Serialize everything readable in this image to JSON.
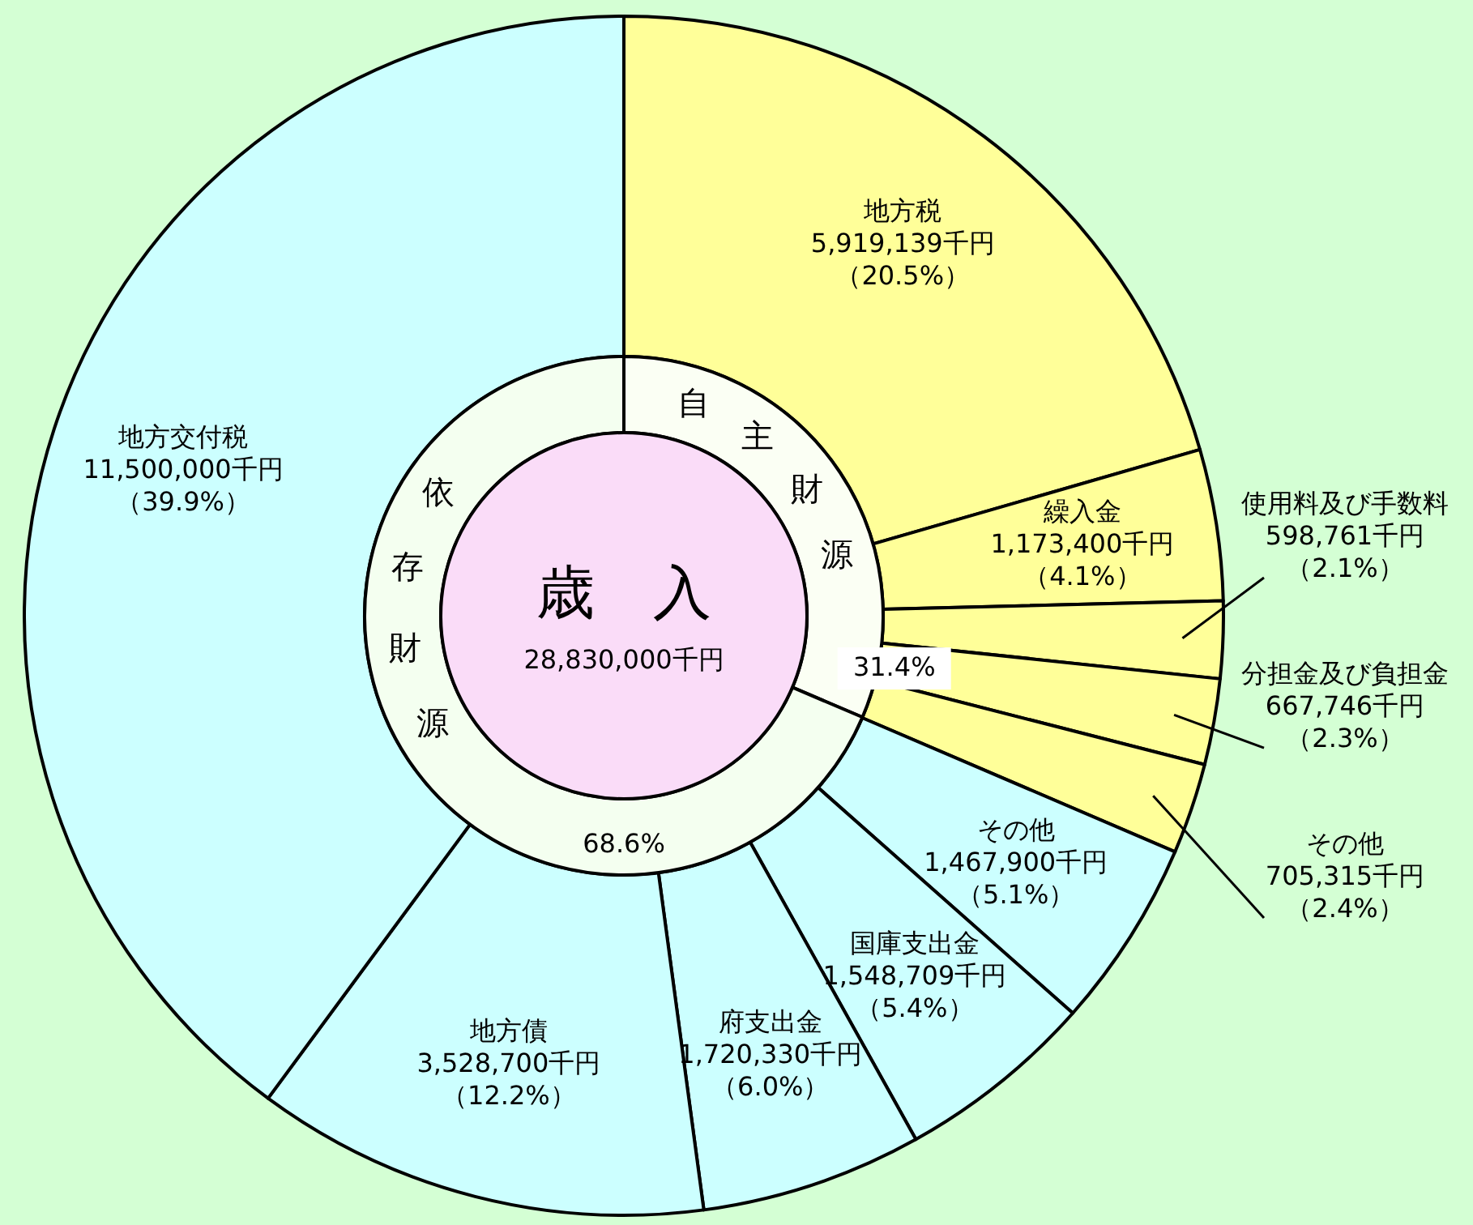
{
  "chart_data": [
    {
      "type": "donut",
      "categories": [
        "地方税",
        "繰入金",
        "使用料及び手数料",
        "分担金及び負担金",
        "その他",
        "その他",
        "国庫支出金",
        "府支出金",
        "地方債",
        "地方交付税"
      ],
      "values": [
        5919139,
        1173400,
        598761,
        667746,
        705315,
        1467900,
        1548709,
        1720330,
        3528700,
        11500000
      ],
      "colors": [
        "#ffff99",
        "#ffff99",
        "#ffff99",
        "#ffff99",
        "#ffff99",
        "#ccffff",
        "#ccffff",
        "#ccffff",
        "#ccffff",
        "#ccffff"
      ],
      "value_labels": [
        "5,919,139千円（20.5%）",
        "1,173,400千円（4.1%）",
        "598,761千円（2.1%）",
        "667,746千円（2.3%）",
        "705,315千円（2.4%）",
        "1,467,900千円（5.1%）",
        "1,548,709千円（5.4%）",
        "1,720,330千円（6.0%）",
        "3,528,700千円（12.2%）",
        "11,500,000千円（39.9%）"
      ]
    },
    {
      "type": "donut",
      "title": "歳　入",
      "subtitle": "28,830,000千円",
      "categories": [
        "自主財源",
        "依存財源"
      ],
      "values": [
        31.4,
        68.6
      ],
      "colors": [
        "#fbfff4",
        "#f4fff0"
      ],
      "value_labels": [
        "31.4%",
        "68.6%"
      ]
    }
  ]
}
